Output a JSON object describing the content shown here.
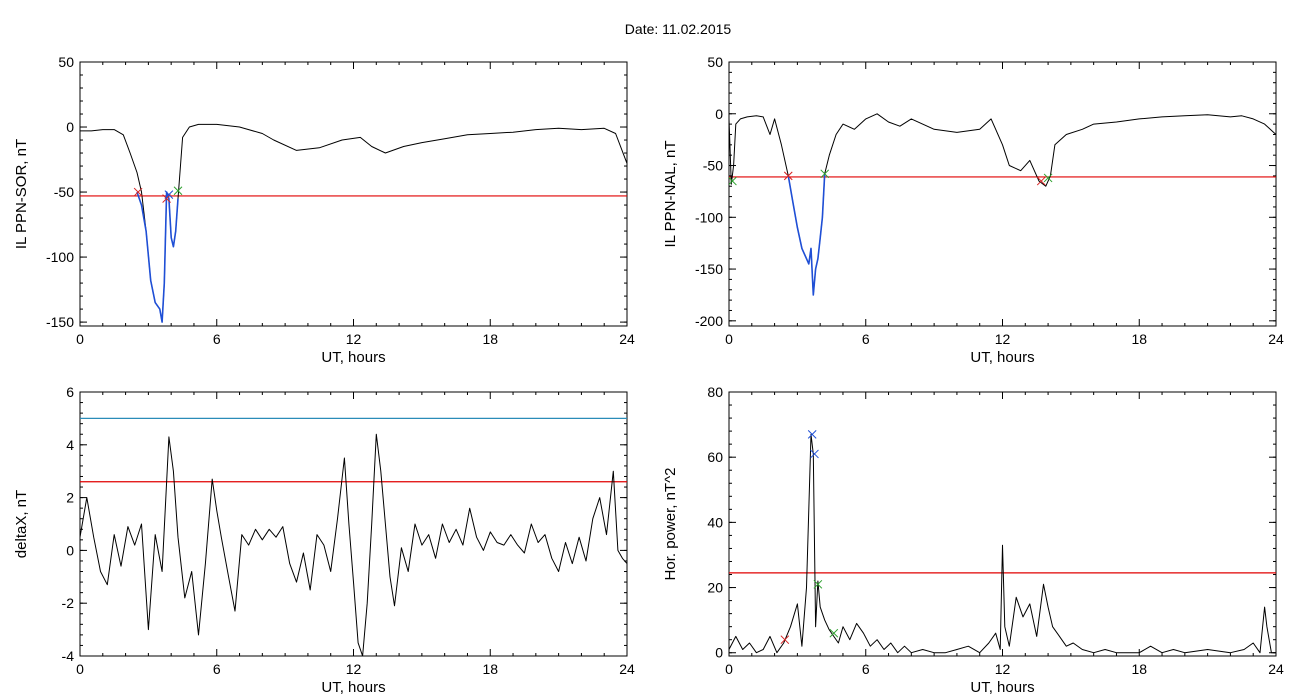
{
  "page": {
    "title": "Date:  11.02.2015"
  },
  "chart_data": [
    {
      "type": "line",
      "xlabel": "UT, hours",
      "ylabel": "IL PPN-SOR, nT",
      "xlim": [
        0,
        24
      ],
      "ylim": [
        -153,
        50
      ],
      "xticks": [
        0,
        6,
        12,
        18,
        24
      ],
      "yticks": [
        50,
        0,
        -50,
        -100,
        -150
      ],
      "grid": false,
      "series": [
        {
          "color": "#000000",
          "x": [
            0,
            0.5,
            1,
            1.5,
            1.9,
            2.2,
            2.5,
            2.7,
            2.9,
            3.1,
            3.3,
            3.5,
            3.6,
            3.7,
            3.8,
            3.9,
            4.0,
            4.1,
            4.2,
            4.3,
            4.5,
            4.8,
            5.2,
            6,
            7,
            8,
            8.5,
            9.5,
            10.5,
            11.5,
            12.3,
            12.8,
            13.4,
            14.2,
            15,
            16,
            17,
            18,
            19,
            20,
            21,
            22,
            23,
            23.5,
            24
          ],
          "y": [
            -3,
            -3,
            -2,
            -2,
            -6,
            -20,
            -35,
            -50,
            -80,
            -118,
            -135,
            -140,
            -150,
            -120,
            -50,
            -55,
            -85,
            -92,
            -80,
            -55,
            -8,
            0,
            2,
            2,
            0,
            -5,
            -10,
            -18,
            -16,
            -10,
            -8,
            -15,
            -20,
            -15,
            -12,
            -9,
            -6,
            -5,
            -4,
            -2,
            -1,
            -2,
            -1,
            -5,
            -28
          ]
        },
        {
          "color": "#1f4fd6",
          "x": [
            2.5,
            2.7,
            2.9,
            3.1,
            3.3,
            3.5,
            3.6,
            3.7,
            3.8,
            3.9,
            4.0,
            4.1,
            4.2,
            4.3
          ],
          "y": [
            -50,
            -60,
            -80,
            -118,
            -135,
            -140,
            -150,
            -120,
            -50,
            -55,
            -85,
            -92,
            -80,
            -55
          ]
        }
      ],
      "hlines": [
        {
          "y": -53,
          "color": "#e00000"
        }
      ],
      "markers": [
        {
          "x": 2.55,
          "y": -50,
          "color": "#d62020"
        },
        {
          "x": 3.8,
          "y": -55,
          "color": "#d62020"
        },
        {
          "x": 3.9,
          "y": -52,
          "color": "#1f4fd6"
        },
        {
          "x": 4.3,
          "y": -49,
          "color": "#2ca02c"
        }
      ]
    },
    {
      "type": "line",
      "xlabel": "UT, hours",
      "ylabel": "IL PPN-NAL, nT",
      "xlim": [
        0,
        24
      ],
      "ylim": [
        -205,
        50
      ],
      "xticks": [
        0,
        6,
        12,
        18,
        24
      ],
      "yticks": [
        50,
        0,
        -50,
        -100,
        -150,
        -200
      ],
      "grid": false,
      "series": [
        {
          "color": "#000000",
          "x": [
            0,
            0.1,
            0.2,
            0.3,
            0.5,
            0.8,
            1.2,
            1.5,
            1.8,
            2.0,
            2.3,
            2.6,
            2.8,
            3.0,
            3.2,
            3.4,
            3.5,
            3.6,
            3.7,
            3.8,
            3.9,
            4.0,
            4.1,
            4.2,
            4.4,
            4.7,
            5.0,
            5.5,
            6.0,
            6.5,
            7.0,
            7.5,
            8.0,
            9.0,
            10.0,
            11.0,
            11.5,
            12.0,
            12.3,
            12.8,
            13.2,
            13.6,
            13.9,
            14.1,
            14.3,
            14.8,
            15.5,
            16,
            17,
            18,
            19,
            20,
            21,
            22,
            22.5,
            23,
            23.5,
            24
          ],
          "y": [
            -5,
            -68,
            -50,
            -10,
            -5,
            -3,
            -2,
            -3,
            -20,
            -5,
            -30,
            -60,
            -85,
            -110,
            -130,
            -140,
            -145,
            -130,
            -175,
            -150,
            -140,
            -120,
            -100,
            -58,
            -40,
            -20,
            -10,
            -15,
            -5,
            0,
            -8,
            -12,
            -5,
            -15,
            -18,
            -15,
            -5,
            -30,
            -50,
            -55,
            -45,
            -65,
            -70,
            -60,
            -30,
            -20,
            -15,
            -10,
            -8,
            -5,
            -3,
            -2,
            -1,
            -3,
            -2,
            -5,
            -10,
            -20
          ]
        },
        {
          "color": "#1f4fd6",
          "x": [
            2.6,
            2.8,
            3.0,
            3.2,
            3.4,
            3.5,
            3.6,
            3.7,
            3.8,
            3.9,
            4.0,
            4.1,
            4.2
          ],
          "y": [
            -60,
            -85,
            -110,
            -130,
            -140,
            -145,
            -130,
            -175,
            -150,
            -140,
            -120,
            -100,
            -58
          ]
        }
      ],
      "hlines": [
        {
          "y": -61,
          "color": "#e00000"
        }
      ],
      "markers": [
        {
          "x": 0.15,
          "y": -65,
          "color": "#2ca02c"
        },
        {
          "x": 2.6,
          "y": -60,
          "color": "#d62020"
        },
        {
          "x": 4.2,
          "y": -58,
          "color": "#2ca02c"
        },
        {
          "x": 13.7,
          "y": -65,
          "color": "#d62020"
        },
        {
          "x": 14.0,
          "y": -62,
          "color": "#2ca02c"
        }
      ]
    },
    {
      "type": "line",
      "xlabel": "UT, hours",
      "ylabel": "deltaX, nT",
      "xlim": [
        0,
        24
      ],
      "ylim": [
        -4,
        6
      ],
      "xticks": [
        0,
        6,
        12,
        18,
        24
      ],
      "yticks": [
        6,
        4,
        2,
        0,
        -2,
        -4
      ],
      "grid": false,
      "series": [
        {
          "color": "#000000",
          "x": [
            0,
            0.3,
            0.6,
            0.9,
            1.2,
            1.5,
            1.8,
            2.1,
            2.4,
            2.7,
            3.0,
            3.3,
            3.6,
            3.9,
            4.1,
            4.3,
            4.6,
            4.9,
            5.2,
            5.5,
            5.8,
            6.0,
            6.2,
            6.5,
            6.8,
            7.1,
            7.4,
            7.7,
            8.0,
            8.3,
            8.6,
            8.9,
            9.2,
            9.5,
            9.8,
            10.1,
            10.4,
            10.7,
            11.0,
            11.3,
            11.6,
            11.8,
            12.0,
            12.2,
            12.4,
            12.6,
            12.8,
            13.0,
            13.2,
            13.4,
            13.6,
            13.8,
            14.1,
            14.4,
            14.7,
            15.0,
            15.3,
            15.6,
            15.9,
            16.2,
            16.5,
            16.8,
            17.1,
            17.4,
            17.7,
            18.0,
            18.3,
            18.6,
            18.9,
            19.2,
            19.5,
            19.8,
            20.1,
            20.4,
            20.7,
            21.0,
            21.3,
            21.6,
            21.9,
            22.2,
            22.5,
            22.8,
            23.1,
            23.4,
            23.6,
            23.8,
            24.0
          ],
          "y": [
            0.5,
            2.0,
            0.5,
            -0.8,
            -1.3,
            0.6,
            -0.6,
            0.9,
            0.2,
            1.0,
            -3.0,
            0.6,
            -0.8,
            4.3,
            3.0,
            0.5,
            -1.8,
            -0.8,
            -3.2,
            -0.5,
            2.7,
            1.5,
            0.5,
            -0.9,
            -2.3,
            0.6,
            0.2,
            0.8,
            0.4,
            0.8,
            0.5,
            0.9,
            -0.5,
            -1.2,
            -0.1,
            -1.5,
            0.6,
            0.2,
            -0.8,
            1.2,
            3.5,
            1.0,
            -1.2,
            -3.5,
            -4.0,
            -2.0,
            1.0,
            4.4,
            3.0,
            1.0,
            -1.0,
            -2.1,
            0.1,
            -0.8,
            1.0,
            0.2,
            0.6,
            -0.3,
            1.0,
            0.3,
            0.8,
            0.2,
            1.6,
            0.5,
            0.0,
            0.7,
            0.3,
            0.2,
            0.6,
            0.2,
            -0.1,
            1.0,
            0.3,
            0.6,
            -0.3,
            -0.8,
            0.3,
            -0.5,
            0.5,
            -0.4,
            1.2,
            2.0,
            0.6,
            3.0,
            0.0,
            -0.3,
            -0.5
          ]
        }
      ],
      "hlines": [
        {
          "y": 5.0,
          "color": "#2a8cb8"
        },
        {
          "y": 2.6,
          "color": "#e00000"
        }
      ],
      "markers": []
    },
    {
      "type": "line",
      "xlabel": "UT, hours",
      "ylabel": "Hor. power, nT^2",
      "xlim": [
        0,
        24
      ],
      "ylim": [
        -1,
        80
      ],
      "xticks": [
        0,
        6,
        12,
        18,
        24
      ],
      "yticks": [
        80,
        60,
        40,
        20,
        0
      ],
      "grid": false,
      "series": [
        {
          "color": "#000000",
          "x": [
            0,
            0.3,
            0.6,
            0.9,
            1.2,
            1.5,
            1.8,
            2.1,
            2.4,
            2.7,
            3.0,
            3.2,
            3.4,
            3.6,
            3.7,
            3.8,
            3.9,
            4.0,
            4.2,
            4.4,
            4.6,
            4.8,
            5.0,
            5.3,
            5.6,
            5.9,
            6.2,
            6.5,
            6.8,
            7.1,
            7.4,
            7.7,
            8.0,
            8.5,
            9.0,
            9.5,
            10.0,
            10.5,
            11.0,
            11.4,
            11.7,
            11.9,
            12.0,
            12.1,
            12.3,
            12.6,
            12.9,
            13.2,
            13.5,
            13.8,
            14.0,
            14.2,
            14.5,
            14.8,
            15.1,
            15.5,
            16.0,
            16.5,
            17.0,
            17.5,
            18.0,
            18.5,
            19.0,
            19.5,
            20.0,
            21.0,
            22.0,
            22.6,
            23.0,
            23.3,
            23.5,
            23.6,
            23.8,
            24.0
          ],
          "y": [
            1,
            5,
            1,
            3,
            0,
            1,
            5,
            0,
            3,
            8,
            15,
            2,
            20,
            67,
            61,
            8,
            22,
            14,
            10,
            7,
            5,
            3,
            8,
            4,
            9,
            6,
            2,
            4,
            1,
            3,
            0,
            2,
            0,
            1,
            0,
            0,
            1,
            2,
            0,
            3,
            6,
            1,
            33,
            8,
            2,
            17,
            11,
            15,
            5,
            21,
            14,
            8,
            5,
            2,
            3,
            1,
            0,
            1,
            0,
            0,
            0,
            2,
            0,
            1,
            0,
            1,
            0,
            1,
            3,
            0,
            14,
            8,
            0,
            0
          ]
        }
      ],
      "hlines": [
        {
          "y": 24.5,
          "color": "#e00000"
        }
      ],
      "markers": [
        {
          "x": 2.45,
          "y": 4,
          "color": "#d62020"
        },
        {
          "x": 3.65,
          "y": 67,
          "color": "#1f4fd6"
        },
        {
          "x": 3.75,
          "y": 61,
          "color": "#1f4fd6"
        },
        {
          "x": 3.9,
          "y": 21,
          "color": "#2ca02c"
        },
        {
          "x": 4.6,
          "y": 6,
          "color": "#2ca02c"
        }
      ]
    }
  ]
}
